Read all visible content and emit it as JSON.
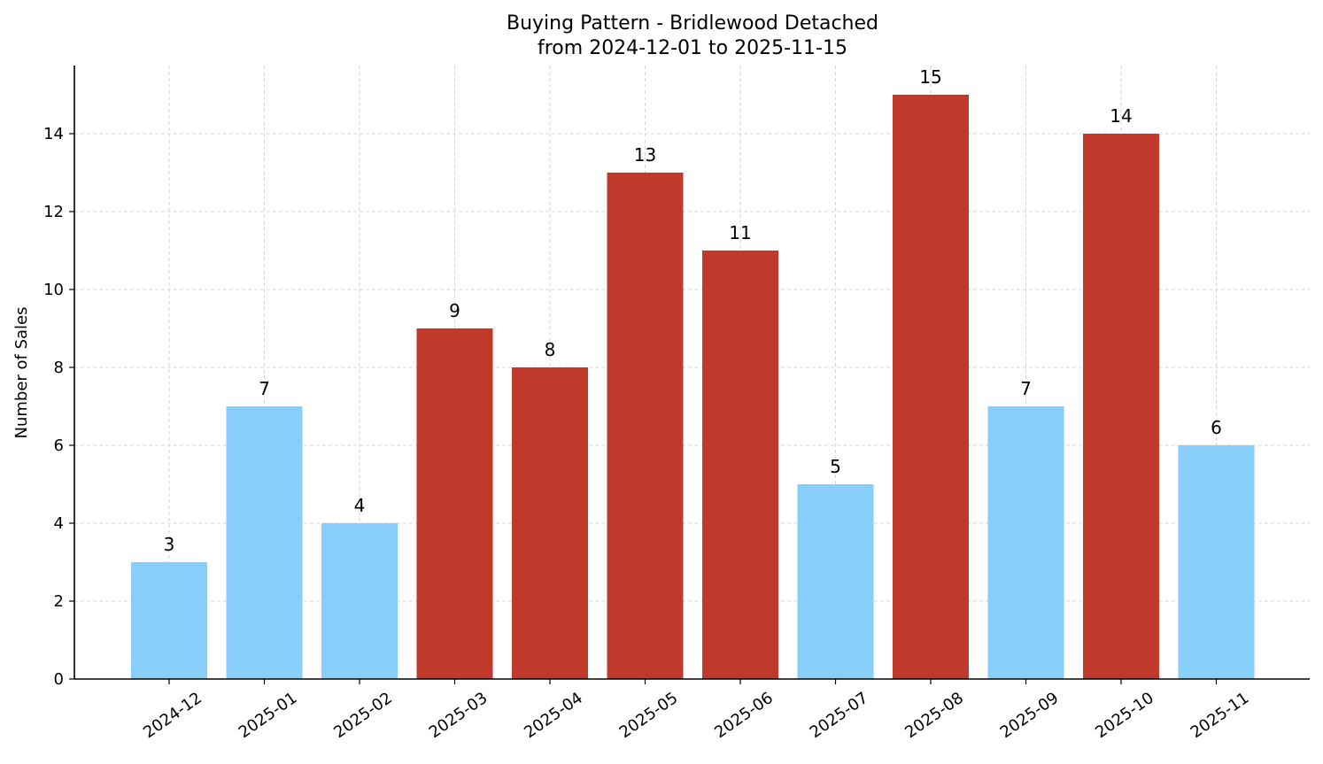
{
  "chart_data": {
    "type": "bar",
    "title": "Buying Pattern - Bridlewood Detached",
    "subtitle": "from 2024-12-01 to 2025-11-15",
    "xlabel": "",
    "ylabel": "Number of Sales",
    "categories": [
      "2024-12",
      "2025-01",
      "2025-02",
      "2025-03",
      "2025-04",
      "2025-05",
      "2025-06",
      "2025-07",
      "2025-08",
      "2025-09",
      "2025-10",
      "2025-11"
    ],
    "values": [
      3,
      7,
      4,
      9,
      8,
      13,
      11,
      5,
      15,
      7,
      14,
      6
    ],
    "ylim": [
      0,
      15.75
    ],
    "yticks": [
      0,
      2,
      4,
      6,
      8,
      10,
      12,
      14
    ],
    "grid": true,
    "colors": {
      "low": "#87CEFA",
      "high": "#C0392B"
    },
    "bar_color_by_category": [
      "low",
      "low",
      "low",
      "high",
      "high",
      "high",
      "high",
      "low",
      "high",
      "low",
      "high",
      "low"
    ]
  }
}
